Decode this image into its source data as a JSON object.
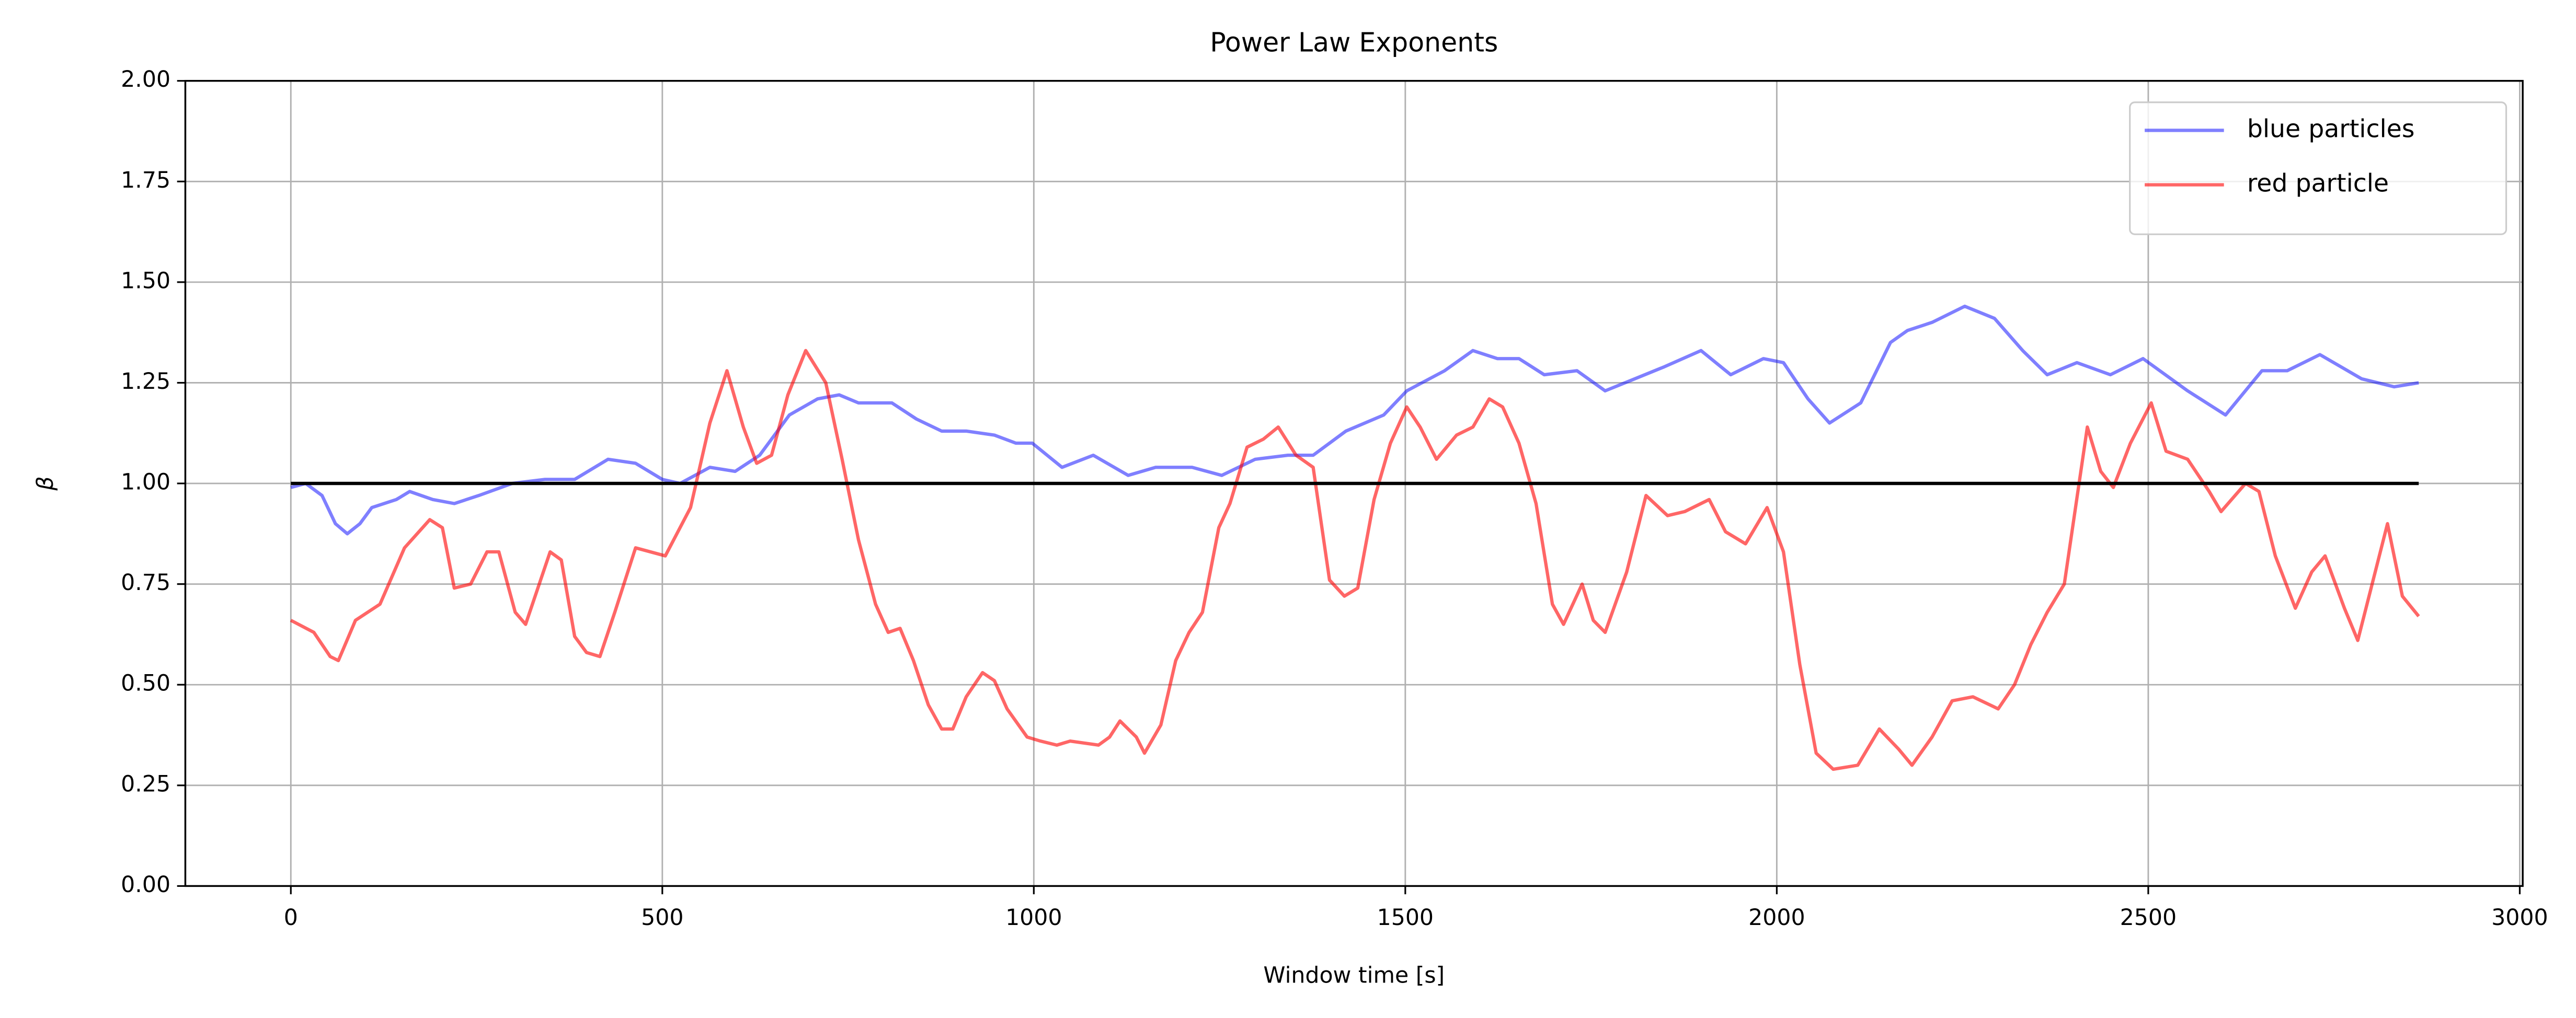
{
  "chart_data": {
    "type": "line",
    "title": "Power Law Exponents",
    "x_label": "Window time [s]",
    "y_label": "β",
    "xlim": [
      -142,
      3004
    ],
    "ylim": [
      0,
      2
    ],
    "xticks": [
      0,
      500,
      1000,
      1500,
      2000,
      2500,
      3000
    ],
    "yticks": [
      {
        "value": 0,
        "label": "0.00"
      },
      {
        "value": 0.25,
        "label": "0.25"
      },
      {
        "value": 0.5,
        "label": "0.50"
      },
      {
        "value": 0.75,
        "label": "0.75"
      },
      {
        "value": 1,
        "label": "1.00"
      },
      {
        "value": 1.25,
        "label": "1.25"
      },
      {
        "value": 1.5,
        "label": "1.50"
      },
      {
        "value": 1.75,
        "label": "1.75"
      },
      {
        "value": 2,
        "label": "2.00"
      }
    ],
    "grid": true,
    "legend": "upper right",
    "series": [
      {
        "name": "blue particles",
        "color": "#0000ff",
        "alpha": 0.5,
        "x": [
          0,
          20,
          42,
          60,
          76,
          93,
          109,
          142,
          160,
          191,
          220,
          253,
          298,
          342,
          382,
          427,
          464,
          500,
          524,
          564,
          598,
          631,
          671,
          709,
          738,
          764,
          809,
          842,
          876,
          909,
          947,
          976,
          998,
          1038,
          1080,
          1127,
          1164,
          1213,
          1253,
          1298,
          1342,
          1376,
          1420,
          1471,
          1502,
          1553,
          1591,
          1624,
          1653,
          1687,
          1731,
          1769,
          1809,
          1849,
          1898,
          1938,
          1982,
          2009,
          2042,
          2071,
          2113,
          2153,
          2176,
          2209,
          2253,
          2293,
          2331,
          2364,
          2404,
          2449,
          2493,
          2553,
          2604,
          2653,
          2687,
          2731,
          2787,
          2831,
          2864
        ],
        "values": [
          0.99,
          1.0,
          0.97,
          0.9,
          0.875,
          0.9,
          0.94,
          0.96,
          0.98,
          0.96,
          0.95,
          0.97,
          1.0,
          1.01,
          1.01,
          1.06,
          1.05,
          1.01,
          1.0,
          1.04,
          1.03,
          1.07,
          1.17,
          1.21,
          1.22,
          1.2,
          1.2,
          1.16,
          1.13,
          1.13,
          1.12,
          1.1,
          1.1,
          1.04,
          1.07,
          1.02,
          1.04,
          1.04,
          1.02,
          1.06,
          1.07,
          1.07,
          1.13,
          1.17,
          1.23,
          1.28,
          1.33,
          1.31,
          1.31,
          1.27,
          1.28,
          1.23,
          1.26,
          1.29,
          1.33,
          1.27,
          1.31,
          1.3,
          1.21,
          1.15,
          1.2,
          1.35,
          1.38,
          1.4,
          1.44,
          1.41,
          1.33,
          1.27,
          1.3,
          1.27,
          1.31,
          1.23,
          1.17,
          1.28,
          1.28,
          1.32,
          1.26,
          1.24,
          1.25
        ]
      },
      {
        "name": "red particle",
        "color": "#ff0000",
        "alpha": 0.6,
        "x": [
          0,
          31,
          53,
          64,
          87,
          120,
          153,
          187,
          204,
          220,
          242,
          264,
          280,
          302,
          316,
          349,
          364,
          382,
          398,
          416,
          436,
          464,
          504,
          538,
          564,
          587,
          609,
          627,
          647,
          669,
          693,
          720,
          742,
          764,
          787,
          804,
          820,
          838,
          858,
          876,
          891,
          909,
          931,
          947,
          964,
          991,
          1009,
          1031,
          1049,
          1087,
          1102,
          1116,
          1138,
          1149,
          1171,
          1191,
          1209,
          1227,
          1249,
          1264,
          1287,
          1309,
          1329,
          1353,
          1376,
          1398,
          1418,
          1436,
          1458,
          1480,
          1502,
          1520,
          1542,
          1569,
          1591,
          1613,
          1631,
          1653,
          1676,
          1698,
          1713,
          1738,
          1753,
          1769,
          1798,
          1824,
          1853,
          1876,
          1909,
          1931,
          1958,
          1987,
          2009,
          2031,
          2053,
          2076,
          2109,
          2138,
          2164,
          2182,
          2209,
          2236,
          2264,
          2298,
          2320,
          2342,
          2364,
          2387,
          2418,
          2436,
          2453,
          2476,
          2504,
          2524,
          2553,
          2582,
          2598,
          2631,
          2649,
          2671,
          2698,
          2720,
          2738,
          2764,
          2782,
          2822,
          2842,
          2864
        ],
        "values": [
          0.66,
          0.63,
          0.57,
          0.56,
          0.66,
          0.7,
          0.84,
          0.91,
          0.89,
          0.74,
          0.75,
          0.83,
          0.83,
          0.68,
          0.65,
          0.83,
          0.81,
          0.62,
          0.58,
          0.57,
          0.68,
          0.84,
          0.82,
          0.94,
          1.15,
          1.28,
          1.14,
          1.05,
          1.07,
          1.22,
          1.33,
          1.25,
          1.06,
          0.86,
          0.7,
          0.63,
          0.64,
          0.56,
          0.45,
          0.39,
          0.39,
          0.47,
          0.53,
          0.51,
          0.44,
          0.37,
          0.36,
          0.35,
          0.36,
          0.35,
          0.37,
          0.41,
          0.37,
          0.33,
          0.4,
          0.56,
          0.63,
          0.68,
          0.89,
          0.95,
          1.09,
          1.11,
          1.14,
          1.07,
          1.04,
          0.76,
          0.72,
          0.74,
          0.96,
          1.1,
          1.19,
          1.14,
          1.06,
          1.12,
          1.14,
          1.21,
          1.19,
          1.1,
          0.95,
          0.7,
          0.65,
          0.75,
          0.66,
          0.63,
          0.78,
          0.97,
          0.92,
          0.93,
          0.96,
          0.88,
          0.85,
          0.94,
          0.83,
          0.55,
          0.33,
          0.29,
          0.3,
          0.39,
          0.34,
          0.3,
          0.37,
          0.46,
          0.47,
          0.44,
          0.5,
          0.6,
          0.68,
          0.75,
          1.14,
          1.03,
          0.99,
          1.1,
          1.2,
          1.08,
          1.06,
          0.98,
          0.93,
          1.0,
          0.98,
          0.82,
          0.69,
          0.78,
          0.82,
          0.69,
          0.61,
          0.9,
          0.72,
          0.67
        ]
      },
      {
        "color": "#000000",
        "alpha": 1,
        "x": [
          0,
          2864
        ],
        "values": [
          1,
          1
        ]
      }
    ]
  }
}
